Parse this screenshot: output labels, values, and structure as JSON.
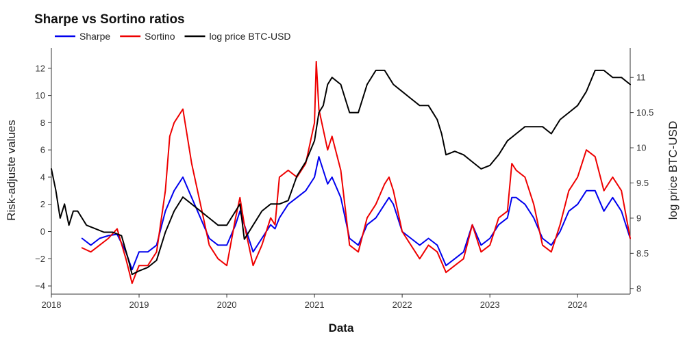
{
  "chart_data": {
    "type": "line",
    "title": "Sharpe vs Sortino ratios",
    "xlabel": "Data",
    "ylabel_left": "Risk-adjuste values",
    "ylabel_right": "log price BTC-USD",
    "xlim": [
      2018.0,
      2024.6
    ],
    "ylim_left": [
      -4.6,
      13.5
    ],
    "ylim_right": [
      7.92,
      11.42
    ],
    "xticks": [
      {
        "value": 2018,
        "label": "2018"
      },
      {
        "value": 2019,
        "label": "2019"
      },
      {
        "value": 2020,
        "label": "2020"
      },
      {
        "value": 2021,
        "label": "2021"
      },
      {
        "value": 2022,
        "label": "2022"
      },
      {
        "value": 2023,
        "label": "2023"
      },
      {
        "value": 2024,
        "label": "2024"
      }
    ],
    "yticks_left": [
      {
        "value": -4,
        "label": "−4"
      },
      {
        "value": -2,
        "label": "−2"
      },
      {
        "value": 0,
        "label": "0"
      },
      {
        "value": 2,
        "label": "2"
      },
      {
        "value": 4,
        "label": "4"
      },
      {
        "value": 6,
        "label": "6"
      },
      {
        "value": 8,
        "label": "8"
      },
      {
        "value": 10,
        "label": "10"
      },
      {
        "value": 12,
        "label": "12"
      }
    ],
    "yticks_right": [
      {
        "value": 8,
        "label": "8"
      },
      {
        "value": 8.5,
        "label": "8.5"
      },
      {
        "value": 9,
        "label": "9"
      },
      {
        "value": 9.5,
        "label": "9.5"
      },
      {
        "value": 10,
        "label": "10"
      },
      {
        "value": 10.5,
        "label": "10.5"
      },
      {
        "value": 11,
        "label": "11"
      }
    ],
    "legend_position": "top-left",
    "grid": false,
    "series": [
      {
        "name": "Sharpe",
        "color": "#0000ee",
        "axis": "left",
        "x": [
          2018.35,
          2018.45,
          2018.55,
          2018.65,
          2018.75,
          2018.85,
          2018.92,
          2019.0,
          2019.1,
          2019.2,
          2019.3,
          2019.4,
          2019.5,
          2019.6,
          2019.7,
          2019.8,
          2019.9,
          2020.0,
          2020.1,
          2020.15,
          2020.2,
          2020.3,
          2020.4,
          2020.5,
          2020.55,
          2020.6,
          2020.7,
          2020.8,
          2020.9,
          2021.0,
          2021.05,
          2021.1,
          2021.15,
          2021.2,
          2021.3,
          2021.4,
          2021.5,
          2021.6,
          2021.7,
          2021.8,
          2021.85,
          2021.9,
          2022.0,
          2022.1,
          2022.2,
          2022.3,
          2022.4,
          2022.5,
          2022.6,
          2022.7,
          2022.8,
          2022.9,
          2023.0,
          2023.1,
          2023.2,
          2023.25,
          2023.3,
          2023.4,
          2023.5,
          2023.6,
          2023.7,
          2023.8,
          2023.9,
          2024.0,
          2024.1,
          2024.2,
          2024.3,
          2024.4,
          2024.5,
          2024.6
        ],
        "y": [
          -0.5,
          -1.0,
          -0.5,
          -0.3,
          -0.2,
          -1.5,
          -2.8,
          -1.5,
          -1.5,
          -1.0,
          1.5,
          3.0,
          4.0,
          2.5,
          1.0,
          -0.5,
          -1.0,
          -1.0,
          0.5,
          1.5,
          0.5,
          -1.5,
          -0.5,
          0.5,
          0.2,
          1.0,
          2.0,
          2.5,
          3.0,
          4.0,
          5.5,
          4.5,
          3.5,
          4.0,
          2.5,
          -0.5,
          -1.0,
          0.5,
          1.0,
          2.0,
          2.5,
          2.0,
          0.0,
          -0.5,
          -1.0,
          -0.5,
          -1.0,
          -2.5,
          -2.0,
          -1.5,
          0.5,
          -1.0,
          -0.5,
          0.5,
          1.0,
          2.5,
          2.5,
          2.0,
          1.0,
          -0.5,
          -1.0,
          0.0,
          1.5,
          2.0,
          3.0,
          3.0,
          1.5,
          2.5,
          1.5,
          -0.5
        ]
      },
      {
        "name": "Sortino",
        "color": "#ee0000",
        "axis": "left",
        "x": [
          2018.35,
          2018.45,
          2018.55,
          2018.65,
          2018.75,
          2018.85,
          2018.92,
          2019.0,
          2019.1,
          2019.2,
          2019.3,
          2019.35,
          2019.4,
          2019.5,
          2019.6,
          2019.7,
          2019.8,
          2019.9,
          2020.0,
          2020.1,
          2020.15,
          2020.2,
          2020.3,
          2020.4,
          2020.5,
          2020.55,
          2020.6,
          2020.7,
          2020.8,
          2020.9,
          2021.0,
          2021.02,
          2021.05,
          2021.1,
          2021.15,
          2021.2,
          2021.3,
          2021.4,
          2021.5,
          2021.6,
          2021.7,
          2021.8,
          2021.85,
          2021.9,
          2022.0,
          2022.1,
          2022.2,
          2022.3,
          2022.4,
          2022.5,
          2022.6,
          2022.7,
          2022.8,
          2022.9,
          2023.0,
          2023.1,
          2023.2,
          2023.25,
          2023.3,
          2023.4,
          2023.5,
          2023.6,
          2023.7,
          2023.8,
          2023.9,
          2024.0,
          2024.1,
          2024.2,
          2024.3,
          2024.4,
          2024.5,
          2024.6
        ],
        "y": [
          -1.2,
          -1.5,
          -1.0,
          -0.5,
          0.2,
          -2.0,
          -3.8,
          -2.5,
          -2.5,
          -1.5,
          3.0,
          7.0,
          8.0,
          9.0,
          5.0,
          2.0,
          -1.0,
          -2.0,
          -2.5,
          1.0,
          2.5,
          0.5,
          -2.5,
          -1.0,
          1.0,
          0.5,
          4.0,
          4.5,
          4.0,
          5.0,
          8.0,
          12.5,
          9.0,
          7.5,
          6.0,
          7.0,
          4.5,
          -1.0,
          -1.5,
          1.0,
          2.0,
          3.5,
          4.0,
          3.0,
          0.0,
          -1.0,
          -2.0,
          -1.0,
          -1.5,
          -3.0,
          -2.5,
          -2.0,
          0.5,
          -1.5,
          -1.0,
          1.0,
          1.5,
          5.0,
          4.5,
          4.0,
          2.0,
          -1.0,
          -1.5,
          0.5,
          3.0,
          4.0,
          6.0,
          5.5,
          3.0,
          4.0,
          3.0,
          -0.5
        ]
      },
      {
        "name": "log price BTC-USD",
        "color": "#000000",
        "axis": "right",
        "x": [
          2018.0,
          2018.05,
          2018.1,
          2018.15,
          2018.2,
          2018.25,
          2018.3,
          2018.35,
          2018.4,
          2018.5,
          2018.6,
          2018.7,
          2018.8,
          2018.88,
          2018.92,
          2019.0,
          2019.1,
          2019.2,
          2019.3,
          2019.4,
          2019.5,
          2019.6,
          2019.7,
          2019.8,
          2019.9,
          2020.0,
          2020.1,
          2020.15,
          2020.2,
          2020.3,
          2020.4,
          2020.5,
          2020.6,
          2020.7,
          2020.8,
          2020.9,
          2021.0,
          2021.05,
          2021.1,
          2021.15,
          2021.2,
          2021.3,
          2021.4,
          2021.5,
          2021.6,
          2021.7,
          2021.8,
          2021.85,
          2021.9,
          2022.0,
          2022.1,
          2022.2,
          2022.3,
          2022.4,
          2022.45,
          2022.5,
          2022.6,
          2022.7,
          2022.8,
          2022.9,
          2023.0,
          2023.1,
          2023.2,
          2023.3,
          2023.4,
          2023.5,
          2023.6,
          2023.7,
          2023.8,
          2023.9,
          2024.0,
          2024.1,
          2024.2,
          2024.3,
          2024.4,
          2024.5,
          2024.6
        ],
        "y": [
          9.7,
          9.4,
          9.0,
          9.2,
          8.9,
          9.1,
          9.1,
          9.0,
          8.9,
          8.85,
          8.8,
          8.8,
          8.75,
          8.4,
          8.2,
          8.25,
          8.3,
          8.4,
          8.8,
          9.1,
          9.3,
          9.2,
          9.1,
          9.0,
          8.9,
          8.9,
          9.1,
          9.2,
          8.7,
          8.9,
          9.1,
          9.2,
          9.2,
          9.25,
          9.6,
          9.8,
          10.1,
          10.5,
          10.6,
          10.9,
          11.0,
          10.9,
          10.5,
          10.5,
          10.9,
          11.1,
          11.1,
          11.0,
          10.9,
          10.8,
          10.7,
          10.6,
          10.6,
          10.4,
          10.2,
          9.9,
          9.95,
          9.9,
          9.8,
          9.7,
          9.75,
          9.9,
          10.1,
          10.2,
          10.3,
          10.3,
          10.3,
          10.2,
          10.4,
          10.5,
          10.6,
          10.8,
          11.1,
          11.1,
          11.0,
          11.0,
          10.9
        ]
      }
    ]
  }
}
